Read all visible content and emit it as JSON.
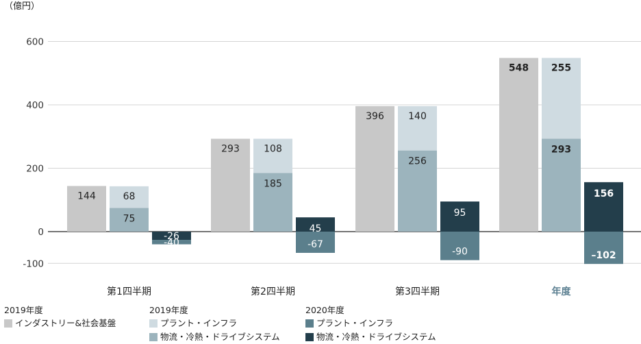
{
  "chart_data": {
    "type": "bar",
    "unit_label": "（億円）",
    "ylim": [
      -100,
      600
    ],
    "yticks": [
      "600",
      "400",
      "200",
      "0",
      "-100"
    ],
    "ytick_values": [
      600,
      400,
      200,
      0,
      -100
    ],
    "categories": [
      "第1四半期",
      "第2四半期",
      "第3四半期",
      "年度"
    ],
    "category_colors": [
      "#222222",
      "#222222",
      "#222222",
      "#5b7f91"
    ],
    "series": [
      {
        "name": "インダストリー&社会基盤",
        "group": "2019年度",
        "color": "#c8c8c8",
        "values": [
          144,
          293,
          396,
          548
        ],
        "labels": [
          "144",
          "293",
          "396",
          "548"
        ]
      },
      {
        "name": "物流・冷熱・ドライブシステム",
        "group": "2019年度",
        "color": "#9cb4bd",
        "values": [
          75,
          185,
          256,
          293
        ],
        "labels": [
          "75",
          "185",
          "256",
          "293"
        ]
      },
      {
        "name": "プラント・インフラ",
        "group": "2019年度",
        "color": "#cfdbe1",
        "values": [
          68,
          108,
          140,
          255
        ],
        "labels": [
          "68",
          "108",
          "140",
          "255"
        ]
      },
      {
        "name": "物流・冷熱・ドライブシステム",
        "group": "2020年度",
        "color": "#233e4b",
        "values": [
          -26,
          45,
          95,
          156
        ],
        "labels": [
          "-26",
          "45",
          "95",
          "156"
        ]
      },
      {
        "name": "プラント・インフラ",
        "group": "2020年度",
        "color": "#5b7f8c",
        "values": [
          -40,
          -67,
          -90,
          -102
        ],
        "labels": [
          "-40",
          "-67",
          "-90",
          "–102"
        ]
      }
    ],
    "legend": [
      {
        "group": "2019年度",
        "items": [
          {
            "label": "インダストリー&社会基盤",
            "color": "#c8c8c8"
          }
        ]
      },
      {
        "group": "2019年度",
        "items": [
          {
            "label": "プラント・インフラ",
            "color": "#cfdbe1"
          },
          {
            "label": "物流・冷熱・ドライブシステム",
            "color": "#9cb4bd"
          }
        ]
      },
      {
        "group": "2020年度",
        "items": [
          {
            "label": "プラント・インフラ",
            "color": "#5b7f8c"
          },
          {
            "label": "物流・冷熱・ドライブシステム",
            "color": "#233e4b"
          }
        ]
      }
    ],
    "legend_placement": "bottom",
    "grid": true
  }
}
